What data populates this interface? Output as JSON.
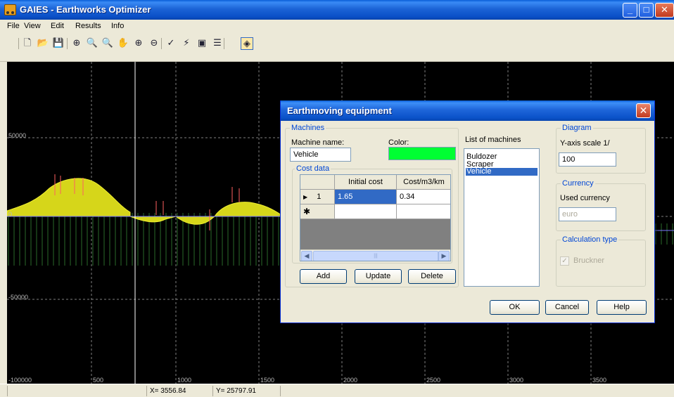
{
  "app": {
    "title": "GAIES - Earthworks Optimizer",
    "window_buttons": {
      "minimize": "_",
      "maximize": "□",
      "close": "✕"
    }
  },
  "menu": [
    {
      "label": "File"
    },
    {
      "label": "View"
    },
    {
      "label": "Edit"
    },
    {
      "label": "Results"
    },
    {
      "label": "Info"
    }
  ],
  "toolbar": [
    {
      "name": "new-file-icon",
      "glyph": "🗋"
    },
    {
      "name": "open-folder-icon",
      "glyph": "📂"
    },
    {
      "name": "save-icon",
      "glyph": "💾"
    },
    {
      "name": "zoom-extents-icon",
      "glyph": "⊕"
    },
    {
      "name": "zoom-window-icon",
      "glyph": "🔍"
    },
    {
      "name": "zoom-realtime-icon",
      "glyph": "🔍"
    },
    {
      "name": "pan-hand-icon",
      "glyph": "✋"
    },
    {
      "name": "zoom-in-icon",
      "glyph": "⊕"
    },
    {
      "name": "zoom-out-icon",
      "glyph": "⊖"
    },
    {
      "name": "check-icon",
      "glyph": "✓"
    },
    {
      "name": "lightning-icon",
      "glyph": "⚡"
    },
    {
      "name": "report-icon",
      "glyph": "▣"
    },
    {
      "name": "layers-icon",
      "glyph": "☰"
    },
    {
      "name": "equipment-icon",
      "glyph": "◈"
    }
  ],
  "canvas": {
    "y_labels": [
      "50000",
      "0",
      "-50000",
      "-100000"
    ],
    "x_labels": [
      "500",
      "1000",
      "1500",
      "2000",
      "2500",
      "3000",
      "3500"
    ],
    "fill_color": "#d6d61a"
  },
  "status": {
    "x": "X= 3556.84",
    "y": "Y= 25797.91"
  },
  "dialog": {
    "title": "Earthmoving equipment",
    "machines_group": "Machines",
    "machine_name_label": "Machine name:",
    "machine_name_value": "Vehicle",
    "color_label": "Color:",
    "machine_color": "#00ff33",
    "cost_group": "Cost data",
    "grid": {
      "headers": [
        "Initial cost",
        "Cost/m3/km"
      ],
      "rows": [
        {
          "marker": "▶",
          "num": "1",
          "initial_cost": "1.65",
          "cost_m3_km": "0.34"
        }
      ],
      "new_row_marker": "✱"
    },
    "buttons": {
      "add": "Add",
      "update": "Update",
      "delete": "Delete",
      "ok": "OK",
      "cancel": "Cancel",
      "help": "Help"
    },
    "list_label": "List of machines",
    "machines": [
      "Buldozer",
      "Scraper",
      "Vehicle"
    ],
    "selected_machine": "Vehicle",
    "diagram_group": "Diagram",
    "yaxis_label": "Y-axis scale 1/",
    "yaxis_value": "100",
    "currency_group": "Currency",
    "currency_label": "Used currency",
    "currency_value": "euro",
    "calc_group": "Calculation type",
    "calc_option": "Bruckner",
    "calc_checked": true
  }
}
